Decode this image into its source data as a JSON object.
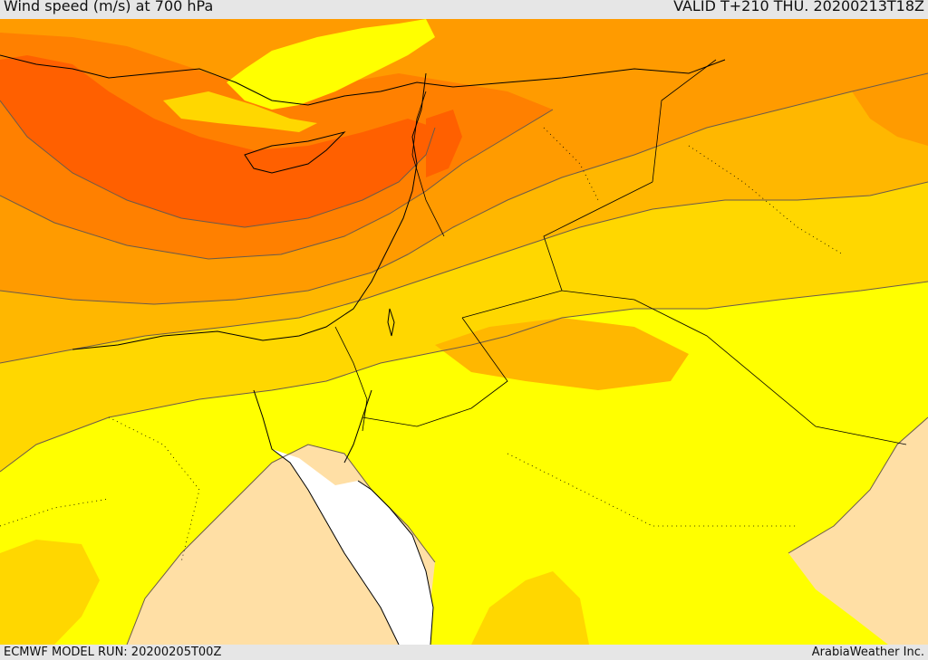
{
  "header": {
    "title": "Wind speed (m/s) at 700 hPa",
    "valid": "VALID T+210 THU. 20200213T18Z"
  },
  "footer": {
    "model_run": "ECMWF MODEL RUN: 20200205T00Z",
    "credit": "ArabiaWeather Inc."
  },
  "map": {
    "colors": {
      "calm": "#ffdfa5",
      "light": "#ffff00",
      "gold": "#ffd700",
      "amber": "#ffb700",
      "orange": "#ff9b00",
      "dark_orange": "#ff8000",
      "red_orange": "#ff6000",
      "sea": "#ffffff",
      "coastline": "#000000",
      "contour": "#6b5a4a"
    }
  }
}
